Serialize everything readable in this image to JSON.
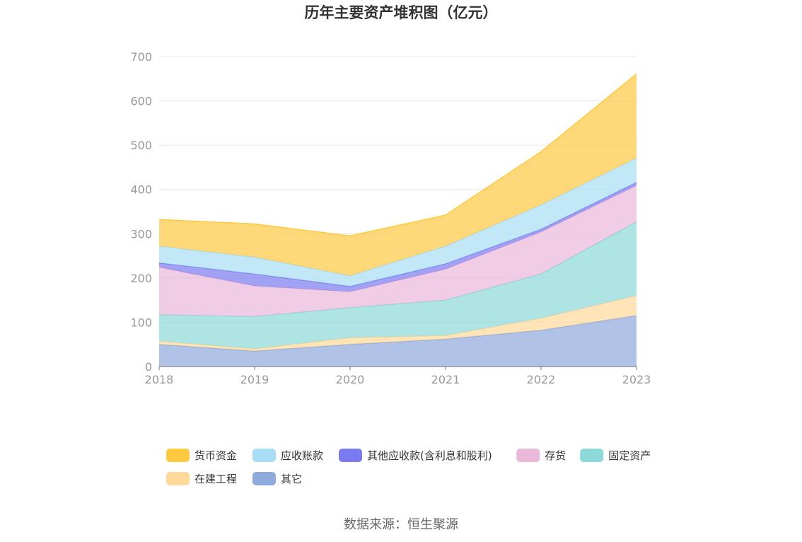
{
  "chart_data": {
    "type": "area",
    "stacked": true,
    "title": "历年主要资产堆积图（亿元）",
    "x": [
      "2018",
      "2019",
      "2020",
      "2021",
      "2022",
      "2023"
    ],
    "ylim": [
      0,
      700
    ],
    "yticks": [
      "0",
      "100",
      "200",
      "300",
      "400",
      "500",
      "600",
      "700"
    ],
    "grid": true,
    "legend_position": "bottom",
    "series": [
      {
        "name": "其它",
        "color": "#8faadc",
        "values": [
          50,
          35,
          50,
          62,
          82,
          115
        ]
      },
      {
        "name": "在建工程",
        "color": "#ffd99a",
        "values": [
          7,
          5,
          15,
          8,
          27,
          45
        ]
      },
      {
        "name": "固定资产",
        "color": "#8dd8d8",
        "values": [
          60,
          73,
          68,
          80,
          100,
          167
        ]
      },
      {
        "name": "存货",
        "color": "#eab8da",
        "values": [
          107,
          69,
          36,
          70,
          95,
          82
        ]
      },
      {
        "name": "其他应收款(含利息和股利)",
        "color": "#7b7bf0",
        "values": [
          10,
          27,
          12,
          12,
          6,
          7
        ]
      },
      {
        "name": "应收账款",
        "color": "#a8def5",
        "values": [
          38,
          38,
          24,
          40,
          55,
          55
        ]
      },
      {
        "name": "货币资金",
        "color": "#ffc940",
        "values": [
          60,
          75,
          90,
          70,
          120,
          190
        ]
      }
    ]
  },
  "source_text": "数据来源：恒生聚源"
}
